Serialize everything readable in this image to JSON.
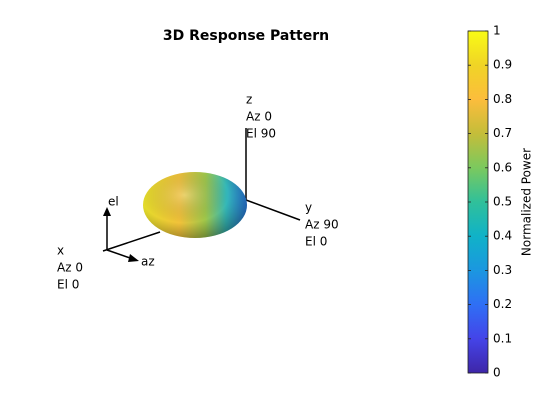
{
  "chart_data": {
    "type": "pattern3d",
    "title": "3D Response Pattern",
    "axis_labels": [
      {
        "name": "x",
        "az": "Az 0",
        "el": "El 0"
      },
      {
        "name": "y",
        "az": "Az 90",
        "el": "El 0"
      },
      {
        "name": "z",
        "az": "Az 0",
        "el": "El 90"
      }
    ],
    "local_axes": [
      "el",
      "az"
    ],
    "colorbar": {
      "label": "Normalized Power",
      "clim": [
        0,
        1
      ],
      "ticks": [
        0,
        0.1,
        0.2,
        0.3,
        0.4,
        0.5,
        0.6,
        0.7,
        0.8,
        0.9,
        1
      ],
      "colormap": [
        "#3e26a8",
        "#4444e8",
        "#2f6ff5",
        "#1b97e0",
        "#10b2c8",
        "#30c09a",
        "#7bc95e",
        "#c4bd3a",
        "#fcbd3c",
        "#f0d426",
        "#f9fb15"
      ]
    }
  }
}
